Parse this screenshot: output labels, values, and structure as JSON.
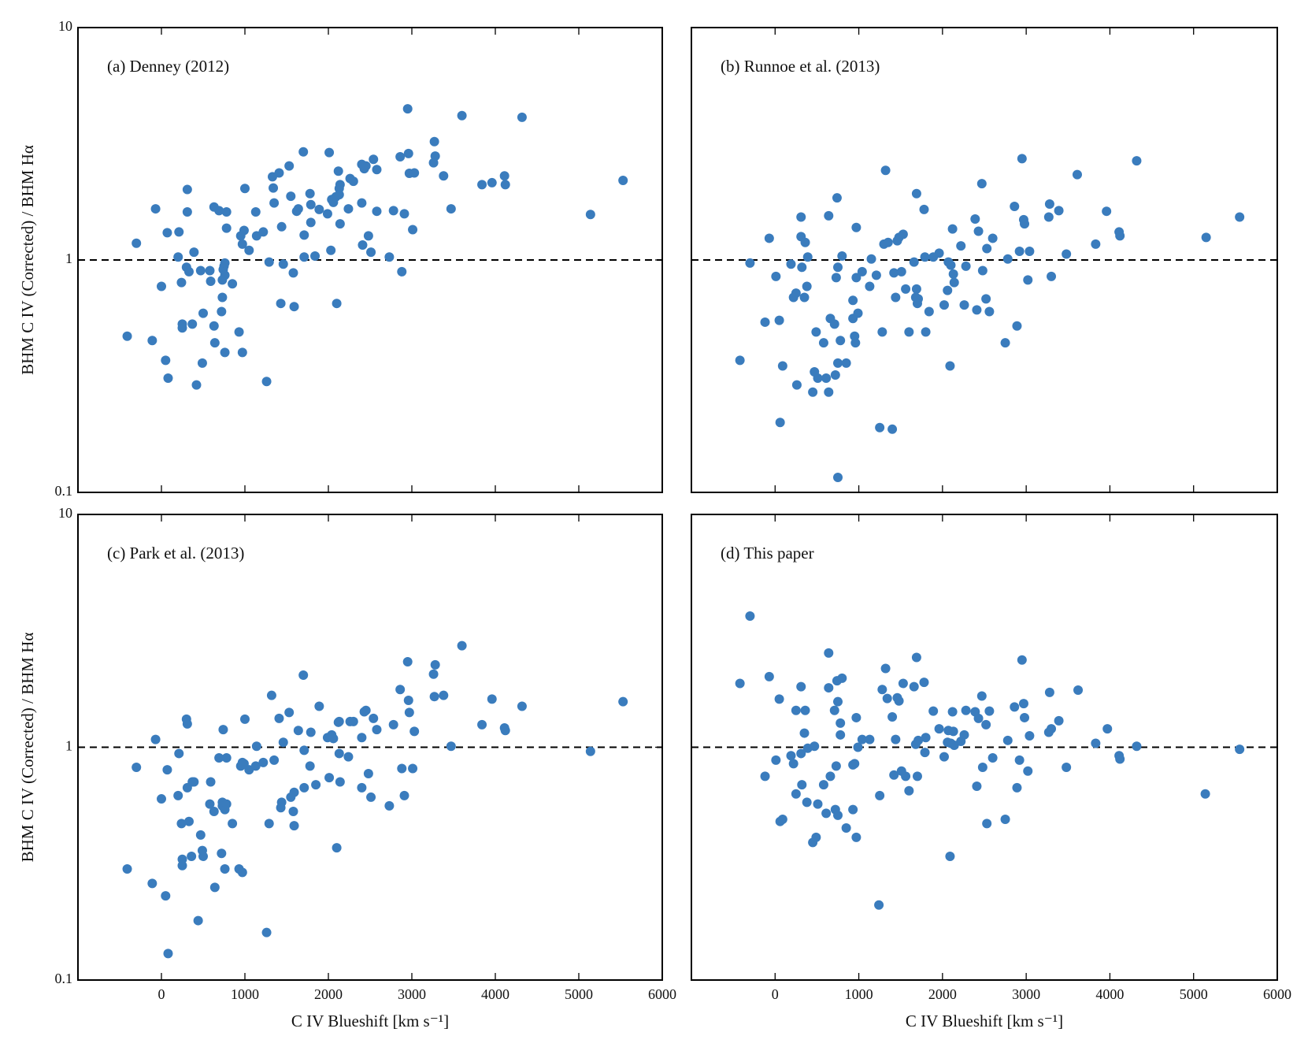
{
  "chart_data": [
    {
      "type": "scatter",
      "title": "(a) Denney (2012)",
      "ylabel": "BHM C IV (Corrected) / BHM Hα",
      "color": "#3a7cbd",
      "yscale": "log",
      "hline": 1,
      "hline_style": "dashed",
      "xlim": [
        -1000,
        6000
      ],
      "ylim": [
        0.1,
        10
      ],
      "xticks": [
        0,
        1000,
        2000,
        3000,
        4000,
        5000,
        6000
      ],
      "yticks": [
        0.1,
        1,
        10
      ],
      "x": [
        -410,
        -300,
        -110,
        -70,
        0,
        50,
        70,
        80,
        200,
        210,
        240,
        250,
        250,
        300,
        310,
        310,
        330,
        370,
        390,
        420,
        470,
        490,
        500,
        580,
        590,
        630,
        630,
        640,
        690,
        720,
        730,
        730,
        740,
        750,
        760,
        760,
        760,
        780,
        780,
        850,
        930,
        950,
        970,
        970,
        990,
        1000,
        1050,
        1130,
        1140,
        1220,
        1260,
        1290,
        1330,
        1340,
        1350,
        1410,
        1430,
        1440,
        1460,
        1530,
        1550,
        1580,
        1590,
        1620,
        1640,
        1700,
        1710,
        1710,
        1780,
        1790,
        1790,
        1840,
        1890,
        1990,
        2010,
        2030,
        2040,
        2060,
        2090,
        2100,
        2120,
        2130,
        2130,
        2140,
        2140,
        2240,
        2260,
        2300,
        2400,
        2400,
        2410,
        2430,
        2450,
        2480,
        2510,
        2540,
        2580,
        2580,
        2730,
        2780,
        2860,
        2880,
        2910,
        2950,
        2960,
        2970,
        3010,
        3030,
        3260,
        3270,
        3280,
        3380,
        3470,
        3600,
        3840,
        3960,
        4110,
        4120,
        4320,
        5140,
        5530
      ],
      "values": [
        0.47,
        1.18,
        0.45,
        1.66,
        0.77,
        0.37,
        1.31,
        0.31,
        1.03,
        1.32,
        0.8,
        0.53,
        0.51,
        0.93,
        1.61,
        2.01,
        0.89,
        0.53,
        1.08,
        0.29,
        0.9,
        0.36,
        0.59,
        0.9,
        0.81,
        1.69,
        0.52,
        0.44,
        1.63,
        0.6,
        0.82,
        0.69,
        0.91,
        0.94,
        0.97,
        0.86,
        0.4,
        1.61,
        1.37,
        0.79,
        0.49,
        1.27,
        1.17,
        0.4,
        1.34,
        2.03,
        1.1,
        1.61,
        1.27,
        1.32,
        0.3,
        0.98,
        2.28,
        2.04,
        1.76,
        2.37,
        0.65,
        1.39,
        0.96,
        2.54,
        1.88,
        0.88,
        0.63,
        1.62,
        1.66,
        2.92,
        1.28,
        1.03,
        1.93,
        1.73,
        1.45,
        1.04,
        1.65,
        1.58,
        2.9,
        1.1,
        1.82,
        1.77,
        1.87,
        0.65,
        2.41,
        2.03,
        1.91,
        1.43,
        2.11,
        1.66,
        2.24,
        2.18,
        1.76,
        2.58,
        1.16,
        2.47,
        2.54,
        1.27,
        1.08,
        2.71,
        2.45,
        1.62,
        1.03,
        1.63,
        2.78,
        0.89,
        1.58,
        4.47,
        2.87,
        2.36,
        1.35,
        2.37,
        2.62,
        3.23,
        2.8,
        2.3,
        1.66,
        4.18,
        2.11,
        2.15,
        2.3,
        2.11,
        4.11,
        1.57,
        2.2
      ]
    },
    {
      "type": "scatter",
      "title": "(b) Runnoe et al. (2013)",
      "color": "#3a7cbd",
      "yscale": "log",
      "hline": 1,
      "hline_style": "dashed",
      "xlim": [
        -1000,
        6000
      ],
      "ylim": [
        0.1,
        10
      ],
      "xticks": [
        0,
        1000,
        2000,
        3000,
        4000,
        5000,
        6000
      ],
      "yticks": [
        0.1,
        1,
        10
      ],
      "x": [
        -420,
        -300,
        -120,
        -70,
        10,
        50,
        60,
        90,
        190,
        220,
        250,
        260,
        310,
        310,
        320,
        350,
        360,
        380,
        390,
        450,
        470,
        490,
        510,
        580,
        610,
        640,
        640,
        660,
        710,
        720,
        730,
        740,
        750,
        750,
        750,
        780,
        800,
        850,
        930,
        930,
        950,
        960,
        970,
        970,
        990,
        1040,
        1130,
        1150,
        1210,
        1250,
        1280,
        1300,
        1320,
        1350,
        1400,
        1420,
        1440,
        1460,
        1480,
        1510,
        1530,
        1560,
        1600,
        1660,
        1680,
        1690,
        1690,
        1700,
        1710,
        1780,
        1790,
        1800,
        1840,
        1890,
        1960,
        2020,
        2060,
        2070,
        2090,
        2100,
        2120,
        2130,
        2140,
        2220,
        2260,
        2280,
        2390,
        2410,
        2430,
        2470,
        2480,
        2520,
        2530,
        2560,
        2600,
        2750,
        2780,
        2860,
        2890,
        2920,
        2950,
        2970,
        2980,
        3020,
        3040,
        3270,
        3280,
        3300,
        3390,
        3480,
        3830,
        4110,
        4120,
        3610,
        3960,
        5150,
        5550,
        4320
      ],
      "values": [
        0.37,
        0.97,
        0.54,
        1.24,
        0.85,
        0.55,
        0.2,
        0.35,
        0.96,
        0.69,
        0.72,
        0.29,
        1.53,
        1.26,
        0.93,
        0.69,
        1.19,
        0.77,
        1.03,
        0.27,
        0.33,
        0.49,
        0.31,
        0.44,
        0.31,
        1.55,
        0.27,
        0.56,
        0.53,
        0.32,
        0.84,
        1.85,
        0.36,
        0.93,
        0.116,
        0.45,
        1.04,
        0.36,
        0.56,
        0.67,
        0.47,
        0.44,
        1.38,
        0.84,
        0.59,
        0.89,
        0.77,
        1.01,
        0.86,
        0.19,
        0.49,
        1.17,
        2.43,
        1.19,
        0.187,
        0.88,
        0.69,
        1.21,
        1.25,
        0.89,
        1.29,
        0.75,
        0.49,
        0.98,
        0.69,
        0.75,
        1.93,
        0.65,
        0.68,
        1.65,
        1.03,
        0.49,
        0.6,
        1.03,
        1.07,
        0.64,
        0.74,
        0.98,
        0.35,
        0.95,
        1.36,
        0.87,
        0.8,
        1.15,
        0.64,
        0.94,
        1.5,
        0.61,
        1.33,
        2.13,
        0.9,
        0.68,
        1.12,
        0.6,
        1.24,
        0.44,
        1.01,
        1.7,
        0.52,
        1.09,
        2.73,
        1.49,
        1.43,
        0.82,
        1.09,
        1.53,
        1.74,
        0.85,
        1.63,
        1.06,
        1.17,
        1.32,
        1.27,
        2.33,
        1.62,
        1.25,
        1.53,
        2.67
      ]
    },
    {
      "type": "scatter",
      "title": "(c) Park et al. (2013)",
      "ylabel": "BHM C IV (Corrected) / BHM Hα",
      "xlabel": "C IV Blueshift [km s⁻¹]",
      "color": "#3a7cbd",
      "yscale": "log",
      "hline": 1,
      "hline_style": "dashed",
      "xlim": [
        -1000,
        6000
      ],
      "ylim": [
        0.1,
        10
      ],
      "xticks": [
        0,
        1000,
        2000,
        3000,
        4000,
        5000,
        6000
      ],
      "yticks": [
        0.1,
        1,
        10
      ],
      "x": [
        -410,
        -300,
        -110,
        -70,
        0,
        50,
        70,
        80,
        200,
        210,
        240,
        250,
        250,
        300,
        310,
        310,
        330,
        360,
        370,
        390,
        440,
        470,
        490,
        500,
        580,
        590,
        630,
        640,
        690,
        720,
        730,
        730,
        740,
        750,
        760,
        760,
        780,
        780,
        850,
        930,
        950,
        970,
        970,
        990,
        1000,
        1050,
        1130,
        1140,
        1220,
        1260,
        1290,
        1320,
        1350,
        1410,
        1430,
        1440,
        1460,
        1530,
        1550,
        1580,
        1590,
        1590,
        1640,
        1700,
        1710,
        1710,
        1780,
        1790,
        1850,
        1890,
        1990,
        2010,
        2040,
        2060,
        2100,
        2120,
        2130,
        2130,
        2140,
        2240,
        2260,
        2300,
        2400,
        2400,
        2430,
        2450,
        2480,
        2510,
        2540,
        2580,
        2730,
        2780,
        2860,
        2880,
        2910,
        2950,
        2960,
        2970,
        3010,
        3030,
        3260,
        3270,
        3280,
        3380,
        3470,
        3600,
        3840,
        3960,
        4110,
        4120,
        4320,
        5140,
        5530
      ],
      "values": [
        0.3,
        0.82,
        0.26,
        1.08,
        0.6,
        0.23,
        0.8,
        0.13,
        0.62,
        0.94,
        0.47,
        0.33,
        0.31,
        1.32,
        1.26,
        0.67,
        0.48,
        0.34,
        0.71,
        0.71,
        0.18,
        0.42,
        0.36,
        0.34,
        0.57,
        0.71,
        0.53,
        0.25,
        0.9,
        0.35,
        0.58,
        0.56,
        1.19,
        0.55,
        0.54,
        0.3,
        0.57,
        0.9,
        0.47,
        0.3,
        0.83,
        0.29,
        0.86,
        0.85,
        1.32,
        0.8,
        0.83,
        1.01,
        0.86,
        0.16,
        0.47,
        1.67,
        0.88,
        1.33,
        0.55,
        0.58,
        1.05,
        1.41,
        0.61,
        0.53,
        0.64,
        0.46,
        1.18,
        2.04,
        0.67,
        0.97,
        0.83,
        1.16,
        0.69,
        1.5,
        1.1,
        0.74,
        1.13,
        1.09,
        0.37,
        1.28,
        0.94,
        1.29,
        0.71,
        0.91,
        1.29,
        1.29,
        0.67,
        1.1,
        1.42,
        1.44,
        0.77,
        0.61,
        1.33,
        1.19,
        0.56,
        1.25,
        1.77,
        0.81,
        0.62,
        2.33,
        1.59,
        1.41,
        0.81,
        1.17,
        2.06,
        1.65,
        2.26,
        1.67,
        1.01,
        2.73,
        1.25,
        1.61,
        1.21,
        1.18,
        1.5,
        0.96,
        1.57
      ]
    },
    {
      "type": "scatter",
      "title": "(d) This paper",
      "xlabel": "C IV Blueshift [km s⁻¹]",
      "color": "#3a7cbd",
      "yscale": "log",
      "hline": 1,
      "hline_style": "dashed",
      "xlim": [
        -1000,
        6000
      ],
      "ylim": [
        0.1,
        10
      ],
      "xticks": [
        0,
        1000,
        2000,
        3000,
        4000,
        5000,
        6000
      ],
      "yticks": [
        0.1,
        1,
        10
      ],
      "x": [
        -420,
        -300,
        -120,
        -70,
        10,
        50,
        60,
        90,
        190,
        220,
        250,
        250,
        310,
        310,
        320,
        350,
        360,
        380,
        390,
        450,
        470,
        490,
        510,
        580,
        610,
        640,
        640,
        660,
        710,
        720,
        730,
        740,
        750,
        750,
        780,
        800,
        780,
        850,
        930,
        930,
        950,
        970,
        970,
        990,
        1040,
        1130,
        1250,
        1280,
        1320,
        1340,
        1400,
        1420,
        1440,
        1460,
        1480,
        1510,
        1530,
        1560,
        1600,
        1660,
        1680,
        1690,
        1700,
        1710,
        1780,
        1790,
        1800,
        1890,
        1960,
        2020,
        2060,
        2070,
        2090,
        2100,
        2120,
        2130,
        2140,
        2220,
        2260,
        2280,
        2390,
        2410,
        2430,
        2470,
        2480,
        2520,
        2530,
        2560,
        2600,
        2750,
        2780,
        2860,
        2890,
        2920,
        2950,
        2970,
        2980,
        3020,
        3040,
        3270,
        3280,
        3300,
        3390,
        3480,
        3620,
        3830,
        3970,
        4110,
        4120,
        4320,
        5140,
        5550,
        1240
      ],
      "values": [
        1.88,
        3.66,
        0.75,
        2.01,
        0.88,
        1.61,
        0.48,
        0.49,
        0.92,
        0.85,
        0.63,
        1.44,
        1.82,
        0.94,
        0.69,
        1.15,
        1.44,
        0.58,
        0.99,
        0.39,
        1.01,
        0.41,
        0.57,
        0.69,
        0.52,
        2.54,
        1.8,
        0.75,
        1.44,
        0.54,
        0.83,
        1.93,
        0.51,
        1.57,
        1.13,
        1.98,
        1.27,
        0.45,
        0.54,
        0.84,
        0.85,
        0.41,
        1.34,
        1.0,
        1.08,
        1.08,
        0.62,
        1.77,
        2.18,
        1.62,
        1.35,
        0.76,
        1.08,
        1.63,
        1.58,
        0.79,
        1.88,
        0.75,
        0.65,
        1.82,
        1.03,
        2.43,
        0.75,
        1.07,
        1.9,
        0.95,
        1.1,
        1.43,
        1.2,
        0.91,
        1.05,
        1.18,
        0.34,
        1.04,
        1.42,
        1.17,
        1.02,
        1.06,
        1.13,
        1.44,
        1.42,
        0.68,
        1.33,
        1.66,
        0.82,
        1.25,
        0.47,
        1.43,
        0.9,
        0.49,
        1.07,
        1.49,
        0.67,
        0.88,
        2.37,
        1.54,
        1.34,
        0.79,
        1.12,
        1.16,
        1.72,
        1.2,
        1.3,
        0.82,
        1.76,
        1.04,
        1.2,
        0.92,
        0.89,
        1.01,
        0.63,
        0.98,
        0.21
      ]
    }
  ]
}
